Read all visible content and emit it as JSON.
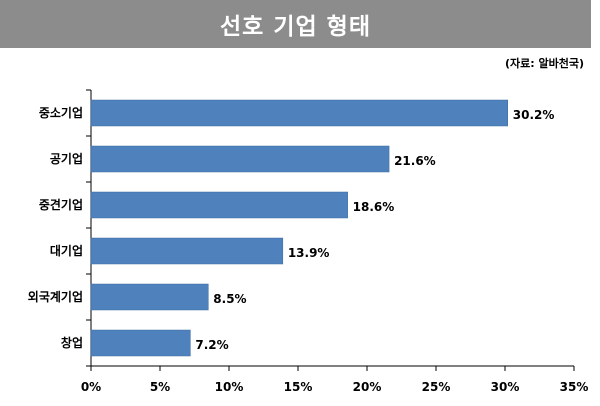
{
  "title": "선호 기업 형태",
  "source": "(자료: 알바천국)",
  "chart_data": {
    "type": "bar",
    "orientation": "horizontal",
    "categories": [
      "중소기업",
      "공기업",
      "중견기업",
      "대기업",
      "외국계기업",
      "창업"
    ],
    "values": [
      30.2,
      21.6,
      18.6,
      13.9,
      8.5,
      7.2
    ],
    "value_labels": [
      "30.2%",
      "21.6%",
      "18.6%",
      "13.9%",
      "8.5%",
      "7.2%"
    ],
    "xlim": [
      0,
      35
    ],
    "xticks": [
      "0%",
      "5%",
      "10%",
      "15%",
      "20%",
      "25%",
      "30%",
      "35%"
    ],
    "bar_color": "#4f81bd",
    "grid": false,
    "legend": "none"
  }
}
